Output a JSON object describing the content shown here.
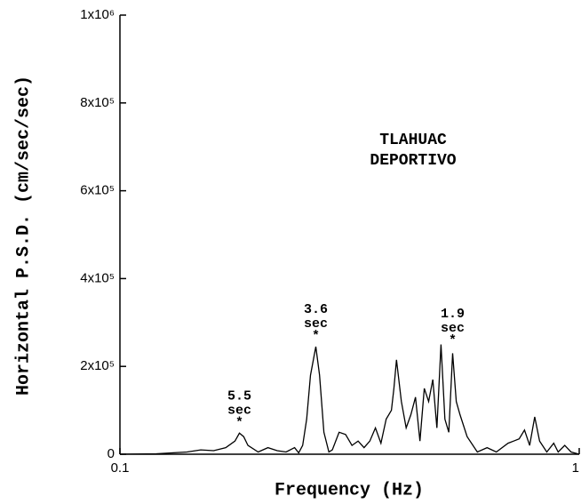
{
  "chart_data": {
    "type": "line",
    "xlabel": "Frequency (Hz)",
    "ylabel": "Horizontal P.S.D. (cm/sec/sec)",
    "station": [
      "TLAHUAC",
      "DEPORTIVO"
    ],
    "xscale": "log",
    "grid": false,
    "xlim": [
      0.1,
      1
    ],
    "xticks": [
      0.1,
      1
    ],
    "ylim": [
      0,
      1000000
    ],
    "yticks": [
      0,
      {
        "value": 200000,
        "label": "2x10⁵"
      },
      {
        "value": 400000,
        "label": "4x10⁵"
      },
      {
        "value": 600000,
        "label": "6x10⁵"
      },
      {
        "value": 800000,
        "label": "8x10⁵"
      },
      {
        "value": 1000000,
        "label": "1x10⁶"
      }
    ],
    "x": [
      0.1,
      0.12,
      0.14,
      0.15,
      0.16,
      0.17,
      0.178,
      0.182,
      0.186,
      0.19,
      0.2,
      0.21,
      0.22,
      0.23,
      0.24,
      0.245,
      0.25,
      0.255,
      0.26,
      0.267,
      0.272,
      0.278,
      0.285,
      0.29,
      0.3,
      0.31,
      0.32,
      0.33,
      0.34,
      0.35,
      0.36,
      0.37,
      0.38,
      0.39,
      0.395,
      0.4,
      0.41,
      0.42,
      0.43,
      0.44,
      0.45,
      0.46,
      0.47,
      0.48,
      0.49,
      0.5,
      0.51,
      0.52,
      0.53,
      0.54,
      0.55,
      0.57,
      0.6,
      0.63,
      0.66,
      0.7,
      0.72,
      0.74,
      0.76,
      0.78,
      0.8,
      0.82,
      0.85,
      0.88,
      0.9,
      0.93,
      0.96,
      1.0
    ],
    "series": [
      {
        "color": "#000000",
        "values": [
          0,
          1000,
          5000,
          10000,
          8000,
          15000,
          30000,
          48000,
          40000,
          20000,
          5000,
          15000,
          8000,
          5000,
          15000,
          3000,
          20000,
          80000,
          180000,
          245000,
          180000,
          50000,
          5000,
          10000,
          50000,
          45000,
          20000,
          30000,
          15000,
          30000,
          60000,
          25000,
          80000,
          100000,
          150000,
          215000,
          120000,
          60000,
          90000,
          130000,
          30000,
          150000,
          120000,
          170000,
          60000,
          250000,
          80000,
          50000,
          230000,
          120000,
          90000,
          40000,
          5000,
          15000,
          5000,
          25000,
          30000,
          35000,
          55000,
          20000,
          85000,
          30000,
          5000,
          25000,
          5000,
          20000,
          5000,
          0
        ]
      }
    ],
    "annotations": [
      {
        "lines": [
          "5.5",
          "sec"
        ],
        "x": 0.182,
        "y": 48000
      },
      {
        "lines": [
          "3.6",
          "sec"
        ],
        "x": 0.267,
        "y": 245000
      },
      {
        "lines": [
          "1.9",
          "sec"
        ],
        "x": 0.53,
        "y": 235000
      }
    ]
  }
}
